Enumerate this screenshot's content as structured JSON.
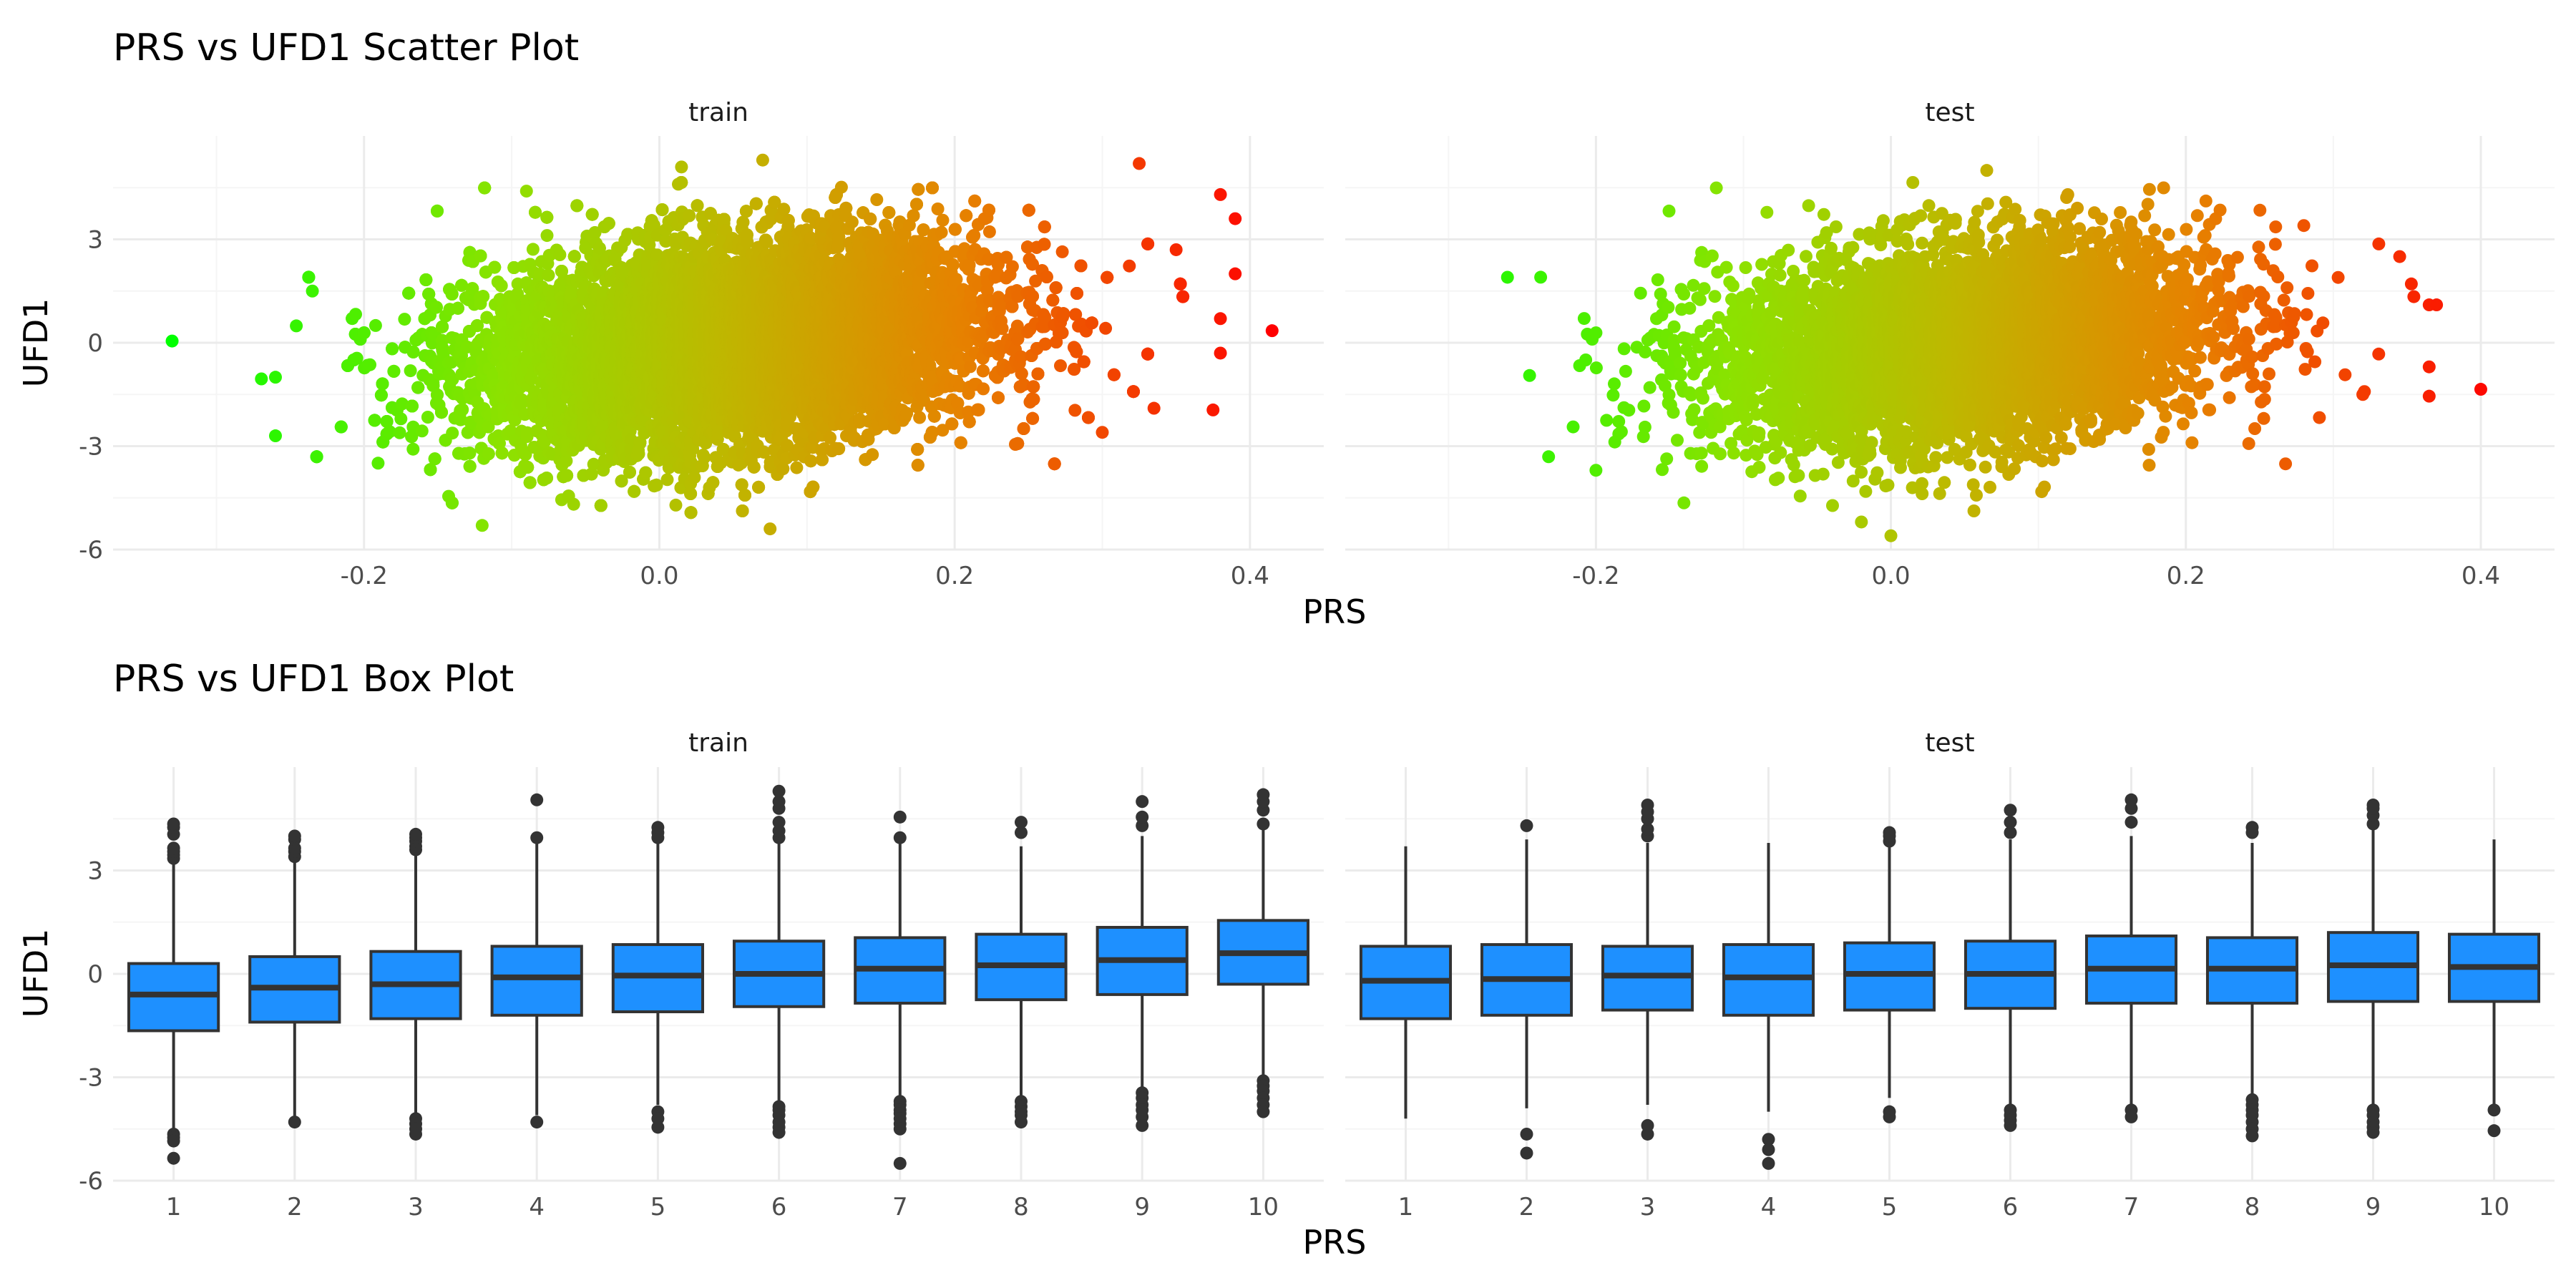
{
  "colors": {
    "grid_major": "#ebebeb",
    "grid_minor": "#f5f5f5",
    "box_fill": "#1e90ff",
    "box_stroke": "#333333",
    "scatter_low": "#00ff00",
    "scatter_high": "#ff0000"
  },
  "chart_data": [
    {
      "type": "scatter",
      "title": "PRS vs UFD1 Scatter Plot",
      "xlabel": "PRS",
      "ylabel": "UFD1",
      "color_mapping": "PRS (green at low values to red at high values)",
      "grid": true,
      "panels": [
        {
          "strip": "train",
          "xlim": [
            -0.37,
            0.45
          ],
          "ylim": [
            -6,
            6
          ],
          "x_ticks": [
            "-0.2",
            "0.0",
            "0.2",
            "0.4"
          ],
          "x_tick_values": [
            -0.2,
            0.0,
            0.2,
            0.4
          ],
          "y_ticks": [
            "-6",
            "-3",
            "0",
            "3"
          ],
          "y_tick_values": [
            -6,
            -3,
            0,
            3
          ],
          "cloud": {
            "x_mean": 0.05,
            "x_sd": 0.085,
            "y_sd": 1.45,
            "slope": 4.0,
            "n": 20000
          },
          "highlight_points": [
            {
              "x": -0.33,
              "y": 0.05
            },
            {
              "x": 0.415,
              "y": 0.35
            },
            {
              "x": 0.39,
              "y": 3.6
            },
            {
              "x": 0.39,
              "y": 2.0
            },
            {
              "x": 0.38,
              "y": 4.3
            },
            {
              "x": 0.38,
              "y": 0.7
            },
            {
              "x": 0.38,
              "y": -0.3
            },
            {
              "x": 0.375,
              "y": -1.95
            },
            {
              "x": 0.35,
              "y": 2.7
            },
            {
              "x": 0.335,
              "y": -1.9
            },
            {
              "x": 0.325,
              "y": 5.2
            },
            {
              "x": 0.3,
              "y": -2.6
            },
            {
              "x": 0.07,
              "y": 5.3
            },
            {
              "x": 0.015,
              "y": 5.1
            },
            {
              "x": 0.075,
              "y": -5.4
            },
            {
              "x": -0.12,
              "y": -5.3
            },
            {
              "x": -0.09,
              "y": 4.4
            },
            {
              "x": -0.26,
              "y": -1.0
            },
            {
              "x": -0.26,
              "y": -2.7
            },
            {
              "x": -0.235,
              "y": 1.5
            }
          ]
        },
        {
          "strip": "test",
          "xlim": [
            -0.37,
            0.45
          ],
          "ylim": [
            -6,
            6
          ],
          "x_ticks": [
            "-0.2",
            "0.0",
            "0.2",
            "0.4"
          ],
          "x_tick_values": [
            -0.2,
            0.0,
            0.2,
            0.4
          ],
          "y_ticks": [
            "-6",
            "-3",
            "0",
            "3"
          ],
          "y_tick_values": [
            -6,
            -3,
            0,
            3
          ],
          "cloud": {
            "x_mean": 0.05,
            "x_sd": 0.085,
            "y_sd": 1.45,
            "slope": 4.0,
            "n": 5000
          },
          "highlight_points": [
            {
              "x": 0.4,
              "y": -1.35
            },
            {
              "x": 0.365,
              "y": 1.1
            },
            {
              "x": 0.37,
              "y": 1.1
            },
            {
              "x": 0.365,
              "y": -0.7
            },
            {
              "x": 0.365,
              "y": -1.55
            },
            {
              "x": 0.345,
              "y": 2.5
            },
            {
              "x": 0.32,
              "y": -1.5
            },
            {
              "x": 0.28,
              "y": 3.4
            },
            {
              "x": -0.26,
              "y": 1.9
            },
            {
              "x": -0.245,
              "y": -0.95
            },
            {
              "x": -0.2,
              "y": -3.7
            },
            {
              "x": 0.065,
              "y": 5.0
            },
            {
              "x": 0.0,
              "y": -5.6
            },
            {
              "x": -0.02,
              "y": -5.2
            }
          ]
        }
      ]
    },
    {
      "type": "box",
      "title": "PRS vs UFD1 Box Plot",
      "xlabel": "PRS",
      "ylabel": "UFD1",
      "grid": true,
      "categories": [
        "1",
        "2",
        "3",
        "4",
        "5",
        "6",
        "7",
        "8",
        "9",
        "10"
      ],
      "panels": [
        {
          "strip": "train",
          "ylim": [
            -6,
            6
          ],
          "y_ticks": [
            "-6",
            "-3",
            "0",
            "3"
          ],
          "y_tick_values": [
            -6,
            -3,
            0,
            3
          ],
          "boxes": [
            {
              "q1": -1.65,
              "median": -0.6,
              "q3": 0.3,
              "lower": -4.5,
              "upper": 3.2,
              "outliers": [
                -4.65,
                -4.75,
                -4.85,
                -5.35,
                3.35,
                3.45,
                3.55,
                3.65,
                4.05,
                4.25,
                4.35
              ]
            },
            {
              "q1": -1.4,
              "median": -0.4,
              "q3": 0.5,
              "lower": -4.2,
              "upper": 3.3,
              "outliers": [
                -4.3,
                3.4,
                3.55,
                3.65,
                3.9,
                4.0
              ]
            },
            {
              "q1": -1.3,
              "median": -0.3,
              "q3": 0.65,
              "lower": -4.1,
              "upper": 3.5,
              "outliers": [
                -4.2,
                -4.35,
                -4.5,
                -4.65,
                3.6,
                3.7,
                3.85,
                3.95,
                4.05
              ]
            },
            {
              "q1": -1.2,
              "median": -0.1,
              "q3": 0.8,
              "lower": -4.1,
              "upper": 3.8,
              "outliers": [
                -4.3,
                3.95,
                5.05
              ]
            },
            {
              "q1": -1.1,
              "median": -0.05,
              "q3": 0.85,
              "lower": -3.8,
              "upper": 3.8,
              "outliers": [
                -4.0,
                -4.2,
                -4.45,
                3.95,
                4.1,
                4.25
              ]
            },
            {
              "q1": -0.95,
              "median": 0.0,
              "q3": 0.95,
              "lower": -3.7,
              "upper": 3.8,
              "outliers": [
                -3.85,
                -3.95,
                -4.1,
                -4.3,
                -4.45,
                -4.6,
                3.95,
                4.15,
                4.4,
                4.8,
                5.0,
                5.3
              ]
            },
            {
              "q1": -0.85,
              "median": 0.15,
              "q3": 1.05,
              "lower": -3.6,
              "upper": 3.9,
              "outliers": [
                -3.7,
                -3.8,
                -3.95,
                -4.05,
                -4.2,
                -4.35,
                -4.5,
                -5.5,
                3.95,
                4.55
              ]
            },
            {
              "q1": -0.75,
              "median": 0.25,
              "q3": 1.15,
              "lower": -3.6,
              "upper": 3.7,
              "outliers": [
                -3.7,
                -3.85,
                -4.0,
                -4.1,
                -4.3,
                4.1,
                4.4
              ]
            },
            {
              "q1": -0.6,
              "median": 0.4,
              "q3": 1.35,
              "lower": -3.3,
              "upper": 4.0,
              "outliers": [
                -3.45,
                -3.6,
                -3.8,
                -3.95,
                -4.15,
                -4.4,
                4.3,
                4.55,
                5.0
              ]
            },
            {
              "q1": -0.3,
              "median": 0.6,
              "q3": 1.55,
              "lower": -3.0,
              "upper": 4.2,
              "outliers": [
                -3.1,
                -3.25,
                -3.4,
                -3.6,
                -3.8,
                -4.0,
                4.35,
                4.75,
                5.0,
                5.2
              ]
            }
          ]
        },
        {
          "strip": "test",
          "ylim": [
            -6,
            6
          ],
          "y_ticks": [
            "-6",
            "-3",
            "0",
            "3"
          ],
          "y_tick_values": [
            -6,
            -3,
            0,
            3
          ],
          "boxes": [
            {
              "q1": -1.3,
              "median": -0.2,
              "q3": 0.8,
              "lower": -4.2,
              "upper": 3.7,
              "outliers": []
            },
            {
              "q1": -1.2,
              "median": -0.15,
              "q3": 0.85,
              "lower": -3.9,
              "upper": 3.9,
              "outliers": [
                -4.65,
                -5.2,
                4.3
              ]
            },
            {
              "q1": -1.05,
              "median": -0.05,
              "q3": 0.8,
              "lower": -3.8,
              "upper": 3.8,
              "outliers": [
                -4.4,
                -4.65,
                4.0,
                4.2,
                4.5,
                4.7,
                4.9
              ]
            },
            {
              "q1": -1.2,
              "median": -0.1,
              "q3": 0.85,
              "lower": -4.0,
              "upper": 3.8,
              "outliers": [
                -4.8,
                -5.1,
                -5.5
              ]
            },
            {
              "q1": -1.05,
              "median": 0.0,
              "q3": 0.9,
              "lower": -3.6,
              "upper": 3.7,
              "outliers": [
                -4.0,
                -4.15,
                3.85,
                4.0,
                4.1
              ]
            },
            {
              "q1": -1.0,
              "median": 0.0,
              "q3": 0.95,
              "lower": -3.8,
              "upper": 3.9,
              "outliers": [
                -3.95,
                -4.1,
                -4.25,
                -4.4,
                4.1,
                4.4,
                4.75
              ]
            },
            {
              "q1": -0.85,
              "median": 0.15,
              "q3": 1.1,
              "lower": -3.8,
              "upper": 4.0,
              "outliers": [
                -3.95,
                -4.15,
                4.4,
                4.8,
                5.05
              ]
            },
            {
              "q1": -0.85,
              "median": 0.15,
              "q3": 1.05,
              "lower": -3.5,
              "upper": 3.8,
              "outliers": [
                -3.65,
                -3.8,
                -3.95,
                -4.1,
                -4.3,
                -4.5,
                -4.7,
                4.1,
                4.25
              ]
            },
            {
              "q1": -0.8,
              "median": 0.25,
              "q3": 1.2,
              "lower": -3.8,
              "upper": 4.2,
              "outliers": [
                -3.95,
                -4.1,
                -4.3,
                -4.45,
                -4.6,
                4.35,
                4.6,
                4.8,
                4.9
              ]
            },
            {
              "q1": -0.8,
              "median": 0.2,
              "q3": 1.15,
              "lower": -3.8,
              "upper": 3.9,
              "outliers": [
                -3.95,
                -4.55
              ]
            }
          ]
        }
      ]
    }
  ]
}
